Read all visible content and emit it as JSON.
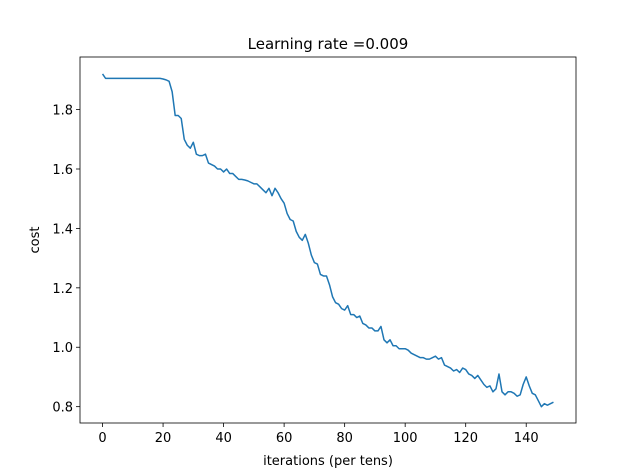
{
  "chart_data": {
    "type": "line",
    "title": "Learning rate =0.009",
    "x_label": "iterations (per tens)",
    "y_label": "cost",
    "x": [
      0,
      1,
      2,
      3,
      4,
      5,
      6,
      7,
      8,
      9,
      10,
      11,
      12,
      13,
      14,
      15,
      16,
      17,
      18,
      19,
      20,
      21,
      22,
      23,
      24,
      25,
      26,
      27,
      28,
      29,
      30,
      31,
      32,
      33,
      34,
      35,
      36,
      37,
      38,
      39,
      40,
      41,
      42,
      43,
      44,
      45,
      46,
      47,
      48,
      49,
      50,
      51,
      52,
      53,
      54,
      55,
      56,
      57,
      58,
      59,
      60,
      61,
      62,
      63,
      64,
      65,
      66,
      67,
      68,
      69,
      70,
      71,
      72,
      73,
      74,
      75,
      76,
      77,
      78,
      79,
      80,
      81,
      82,
      83,
      84,
      85,
      86,
      87,
      88,
      89,
      90,
      91,
      92,
      93,
      94,
      95,
      96,
      97,
      98,
      99,
      100,
      101,
      102,
      103,
      104,
      105,
      106,
      107,
      108,
      109,
      110,
      111,
      112,
      113,
      114,
      115,
      116,
      117,
      118,
      119,
      120,
      121,
      122,
      123,
      124,
      125,
      126,
      127,
      128,
      129,
      130,
      131,
      132,
      133,
      134,
      135,
      136,
      137,
      138,
      139,
      140,
      141,
      142,
      143,
      144,
      145,
      146,
      147,
      148,
      149
    ],
    "series": [
      {
        "color": "#1f77b4",
        "values": [
          1.92,
          1.905,
          1.905,
          1.905,
          1.905,
          1.905,
          1.905,
          1.905,
          1.905,
          1.905,
          1.905,
          1.905,
          1.905,
          1.905,
          1.905,
          1.905,
          1.905,
          1.905,
          1.905,
          1.905,
          1.903,
          1.9,
          1.895,
          1.86,
          1.78,
          1.78,
          1.77,
          1.7,
          1.68,
          1.67,
          1.69,
          1.65,
          1.645,
          1.645,
          1.65,
          1.62,
          1.615,
          1.61,
          1.6,
          1.6,
          1.59,
          1.6,
          1.585,
          1.585,
          1.575,
          1.565,
          1.565,
          1.563,
          1.56,
          1.555,
          1.55,
          1.55,
          1.54,
          1.53,
          1.52,
          1.535,
          1.51,
          1.535,
          1.52,
          1.5,
          1.485,
          1.45,
          1.43,
          1.425,
          1.39,
          1.37,
          1.36,
          1.38,
          1.35,
          1.31,
          1.285,
          1.28,
          1.245,
          1.24,
          1.24,
          1.21,
          1.17,
          1.15,
          1.145,
          1.13,
          1.125,
          1.14,
          1.11,
          1.11,
          1.1,
          1.105,
          1.08,
          1.075,
          1.065,
          1.065,
          1.055,
          1.055,
          1.07,
          1.025,
          1.015,
          1.025,
          1.005,
          1.005,
          0.995,
          0.995,
          0.995,
          0.99,
          0.98,
          0.975,
          0.97,
          0.965,
          0.965,
          0.96,
          0.96,
          0.965,
          0.97,
          0.96,
          0.965,
          0.94,
          0.935,
          0.93,
          0.92,
          0.925,
          0.915,
          0.93,
          0.925,
          0.91,
          0.905,
          0.895,
          0.905,
          0.89,
          0.875,
          0.865,
          0.87,
          0.85,
          0.86,
          0.91,
          0.85,
          0.84,
          0.85,
          0.85,
          0.845,
          0.835,
          0.84,
          0.875,
          0.9,
          0.87,
          0.845,
          0.84,
          0.82,
          0.8,
          0.81,
          0.805,
          0.81,
          0.815
        ]
      }
    ],
    "xlim": [
      -7.45,
      156.45
    ],
    "xticks": [
      0,
      20,
      40,
      60,
      80,
      100,
      120,
      140
    ],
    "ylim": [
      0.745,
      1.977
    ],
    "yticks": [
      0.8,
      {
        "value": 1,
        "label": "1.0"
      },
      1.2,
      1.4,
      1.6,
      1.8
    ]
  }
}
